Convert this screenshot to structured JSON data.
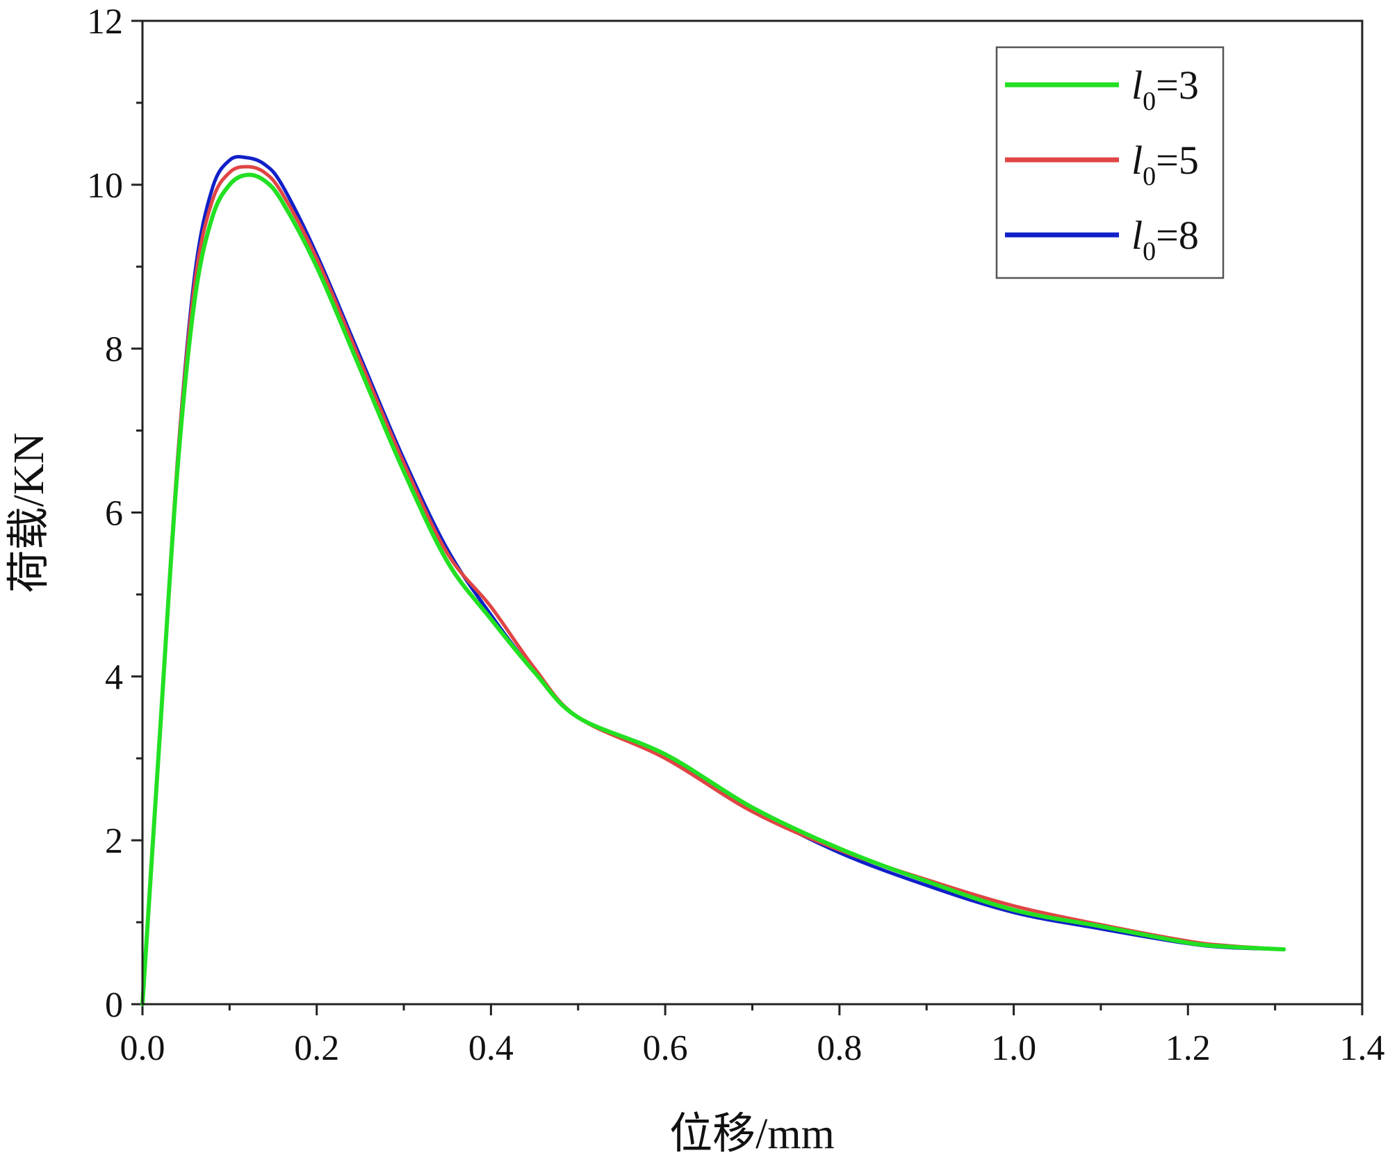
{
  "chart_data": {
    "type": "line",
    "title": "",
    "xlabel": "位移/mm",
    "ylabel": "荷载/KN",
    "xlim": [
      0.0,
      1.4
    ],
    "ylim": [
      0,
      12
    ],
    "x_ticks": [
      "0.0",
      "0.2",
      "0.4",
      "0.6",
      "0.8",
      "1.0",
      "1.2",
      "1.4"
    ],
    "y_ticks": [
      "0",
      "2",
      "4",
      "6",
      "8",
      "10",
      "12"
    ],
    "grid": false,
    "legend_position": "top-right",
    "series": [
      {
        "name": "l0=3",
        "legend": {
          "var": "l",
          "sub": "0",
          "rest": "=3"
        },
        "color": "#22e022",
        "x": [
          0.0,
          0.02,
          0.04,
          0.06,
          0.08,
          0.1,
          0.12,
          0.14,
          0.16,
          0.2,
          0.25,
          0.3,
          0.35,
          0.4,
          0.45,
          0.5,
          0.6,
          0.7,
          0.8,
          0.9,
          1.0,
          1.1,
          1.2,
          1.25,
          1.31
        ],
        "y": [
          0.0,
          3.3,
          6.5,
          8.6,
          9.6,
          10.0,
          10.12,
          10.05,
          9.8,
          9.0,
          7.75,
          6.5,
          5.4,
          4.7,
          4.05,
          3.5,
          3.05,
          2.4,
          1.9,
          1.5,
          1.15,
          0.95,
          0.75,
          0.7,
          0.67
        ]
      },
      {
        "name": "l0=5",
        "legend": {
          "var": "l",
          "sub": "0",
          "rest": "=5"
        },
        "color": "#e04444",
        "x": [
          0.0,
          0.02,
          0.04,
          0.06,
          0.08,
          0.1,
          0.12,
          0.14,
          0.16,
          0.2,
          0.25,
          0.3,
          0.35,
          0.4,
          0.45,
          0.5,
          0.6,
          0.7,
          0.8,
          0.9,
          1.0,
          1.1,
          1.2,
          1.25,
          1.31
        ],
        "y": [
          0.0,
          3.3,
          6.6,
          8.8,
          9.8,
          10.15,
          10.22,
          10.15,
          9.9,
          9.1,
          7.85,
          6.6,
          5.5,
          4.85,
          4.1,
          3.5,
          3.0,
          2.35,
          1.88,
          1.52,
          1.2,
          0.97,
          0.77,
          0.71,
          0.67
        ]
      },
      {
        "name": "l0=8",
        "legend": {
          "var": "l",
          "sub": "0",
          "rest": "=8"
        },
        "color": "#1020c8",
        "x": [
          0.0,
          0.02,
          0.04,
          0.06,
          0.08,
          0.1,
          0.12,
          0.14,
          0.16,
          0.2,
          0.25,
          0.3,
          0.35,
          0.4,
          0.45,
          0.5,
          0.6,
          0.7,
          0.8,
          0.9,
          1.0,
          1.1,
          1.2,
          1.25,
          1.31
        ],
        "y": [
          0.0,
          3.3,
          6.6,
          8.9,
          9.95,
          10.3,
          10.33,
          10.25,
          10.0,
          9.15,
          7.9,
          6.65,
          5.55,
          4.75,
          4.05,
          3.5,
          3.02,
          2.38,
          1.85,
          1.45,
          1.12,
          0.92,
          0.74,
          0.69,
          0.67
        ]
      }
    ]
  }
}
